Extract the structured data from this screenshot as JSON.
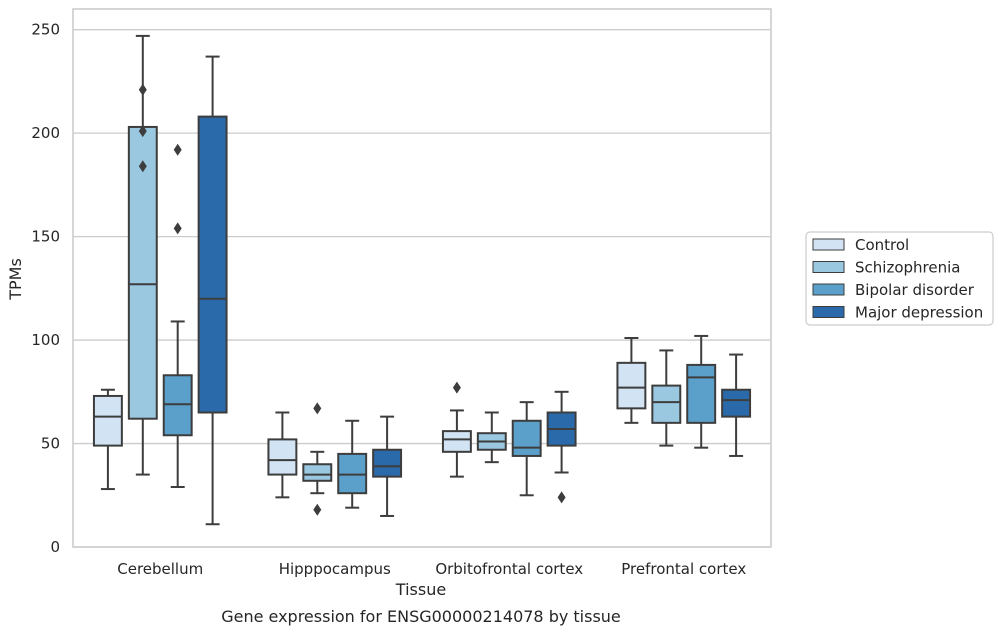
{
  "chart_data": {
    "type": "boxplot",
    "title": "",
    "xlabel": "Tissue",
    "ylabel": "TPMs",
    "caption": "Gene expression for ENSG00000214078 by tissue",
    "ylim": [
      0,
      260
    ],
    "yticks": [
      0,
      50,
      100,
      150,
      200,
      250
    ],
    "grid": "horizontal",
    "legend_position": "right",
    "categories": [
      "Cerebellum",
      "Hipppocampus",
      "Orbitofrontal cortex",
      "Prefrontal cortex"
    ],
    "series": [
      {
        "name": "Control",
        "color": "#d2e3f3",
        "boxes": [
          {
            "min": 28,
            "q1": 49,
            "median": 63,
            "q3": 73,
            "max": 76,
            "outliers": []
          },
          {
            "min": 24,
            "q1": 35,
            "median": 42,
            "q3": 52,
            "max": 65,
            "outliers": []
          },
          {
            "min": 34,
            "q1": 46,
            "median": 52,
            "q3": 56,
            "max": 66,
            "outliers": [
              77
            ]
          },
          {
            "min": 60,
            "q1": 67,
            "median": 77,
            "q3": 89,
            "max": 101,
            "outliers": []
          }
        ]
      },
      {
        "name": "Schizophrenia",
        "color": "#9ac8e0",
        "boxes": [
          {
            "min": 35,
            "q1": 62,
            "median": 127,
            "q3": 203,
            "max": 247,
            "outliers": [
              221,
              201,
              184
            ]
          },
          {
            "min": 26,
            "q1": 32,
            "median": 35,
            "q3": 40,
            "max": 46,
            "outliers": [
              67,
              18
            ]
          },
          {
            "min": 41,
            "q1": 47,
            "median": 51,
            "q3": 55,
            "max": 65,
            "outliers": []
          },
          {
            "min": 49,
            "q1": 60,
            "median": 70,
            "q3": 78,
            "max": 95,
            "outliers": []
          }
        ]
      },
      {
        "name": "Bipolar disorder",
        "color": "#5b9fcb",
        "boxes": [
          {
            "min": 29,
            "q1": 54,
            "median": 69,
            "q3": 83,
            "max": 109,
            "outliers": [
              192,
              154
            ]
          },
          {
            "min": 19,
            "q1": 26,
            "median": 35,
            "q3": 45,
            "max": 61,
            "outliers": []
          },
          {
            "min": 25,
            "q1": 44,
            "median": 48,
            "q3": 61,
            "max": 70,
            "outliers": []
          },
          {
            "min": 48,
            "q1": 60,
            "median": 82,
            "q3": 88,
            "max": 102,
            "outliers": []
          }
        ]
      },
      {
        "name": "Major depression",
        "color": "#2a6aaa",
        "boxes": [
          {
            "min": 11,
            "q1": 65,
            "median": 120,
            "q3": 208,
            "max": 237,
            "outliers": []
          },
          {
            "min": 15,
            "q1": 34,
            "median": 39,
            "q3": 47,
            "max": 63,
            "outliers": []
          },
          {
            "min": 36,
            "q1": 49,
            "median": 57,
            "q3": 65,
            "max": 75,
            "outliers": [
              24
            ]
          },
          {
            "min": 44,
            "q1": 63,
            "median": 71,
            "q3": 76,
            "max": 93,
            "outliers": []
          }
        ]
      }
    ]
  }
}
